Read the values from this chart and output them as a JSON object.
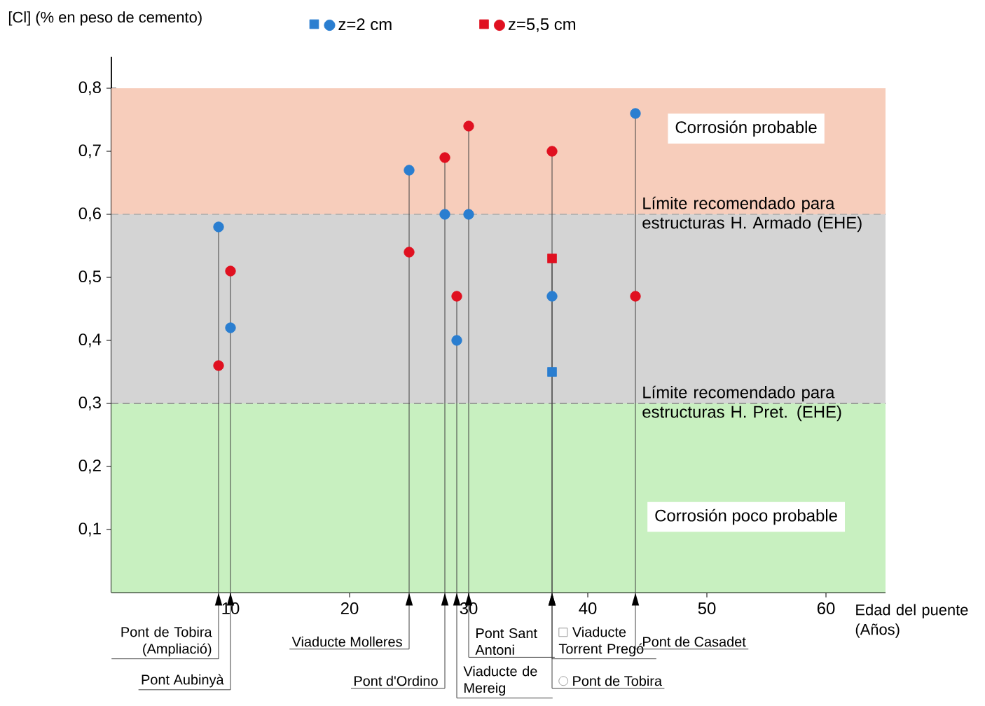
{
  "chart_data": {
    "type": "scatter",
    "xlabel": "Edad del puente (Años)",
    "ylabel": "[Cl] (% en peso de cemento)",
    "xlim": [
      0,
      65
    ],
    "ylim": [
      0,
      0.85
    ],
    "xticks": [
      10,
      20,
      30,
      40,
      50,
      60
    ],
    "yticks": [
      {
        "value": 0.1,
        "label": "0,1"
      },
      {
        "value": 0.2,
        "label": "0,2"
      },
      {
        "value": 0.3,
        "label": "0,3"
      },
      {
        "value": 0.4,
        "label": "0,4"
      },
      {
        "value": 0.5,
        "label": "0,5"
      },
      {
        "value": 0.6,
        "label": "0,6"
      },
      {
        "value": 0.7,
        "label": "0,7"
      },
      {
        "value": 0.8,
        "label": "0,8"
      }
    ],
    "legend": "top",
    "series": [
      {
        "name": "z=2 cm",
        "color": "#2a7ed0",
        "marker": "circle",
        "x": [
          9,
          10,
          25,
          28,
          29,
          30,
          37,
          44
        ],
        "values": [
          0.58,
          0.42,
          0.67,
          0.6,
          0.4,
          0.6,
          0.47,
          0.76
        ]
      },
      {
        "color": "#2a7ed0",
        "marker": "square",
        "x": [
          37
        ],
        "values": [
          0.35
        ]
      },
      {
        "name": "z=5,5 cm",
        "color": "#e01020",
        "marker": "circle",
        "x": [
          9,
          10,
          25,
          28,
          29,
          30,
          37,
          44
        ],
        "values": [
          0.36,
          0.51,
          0.54,
          0.69,
          0.47,
          0.74,
          0.7,
          0.47
        ]
      },
      {
        "color": "#e01020",
        "marker": "square",
        "x": [
          37
        ],
        "values": [
          0.53
        ]
      }
    ],
    "bands": [
      {
        "axis": "y",
        "from": 0.6,
        "to": 0.8,
        "label": "Corrosión probable",
        "color": "#f7cdbb"
      },
      {
        "axis": "y",
        "from": 0.3,
        "to": 0.6,
        "color": "#d4d4d4"
      },
      {
        "axis": "y",
        "from": 0,
        "to": 0.3,
        "label": "Corrosión poco probable",
        "color": "#c8f0c0"
      }
    ],
    "ref_lines": [
      {
        "axis": "y",
        "value": 0.6,
        "label": "Límite recomendado para estructuras H. Armado (EHE)",
        "color": "#aaaaaa",
        "line_style": "dashed"
      },
      {
        "axis": "y",
        "value": 0.3,
        "label": "Límite recomendado para estructuras H. Pret. (EHE)",
        "color": "#888888",
        "line_style": "dashed"
      }
    ],
    "annotations": [
      {
        "text": "Pont de Tobira (Ampliació)",
        "x": 9,
        "y": 0.58
      },
      {
        "text": "Pont Aubinyà",
        "x": 10,
        "y": 0.51
      },
      {
        "text": "Viaducte Molleres",
        "x": 25,
        "y": 0.67
      },
      {
        "text": "Pont d'Ordino",
        "x": 28,
        "y": 0.69
      },
      {
        "text": "Viaducte de Mereig",
        "x": 29,
        "y": 0.47
      },
      {
        "text": "Pont Sant Antoni",
        "x": 30,
        "y": 0.74
      },
      {
        "text": "Viaducte Torrent Pregó",
        "x": 37,
        "y": 0.53
      },
      {
        "text": "Pont de Tobira",
        "x": 37,
        "y": 0.7
      },
      {
        "text": "Pont de Casadet",
        "x": 44,
        "y": 0.76
      }
    ]
  }
}
